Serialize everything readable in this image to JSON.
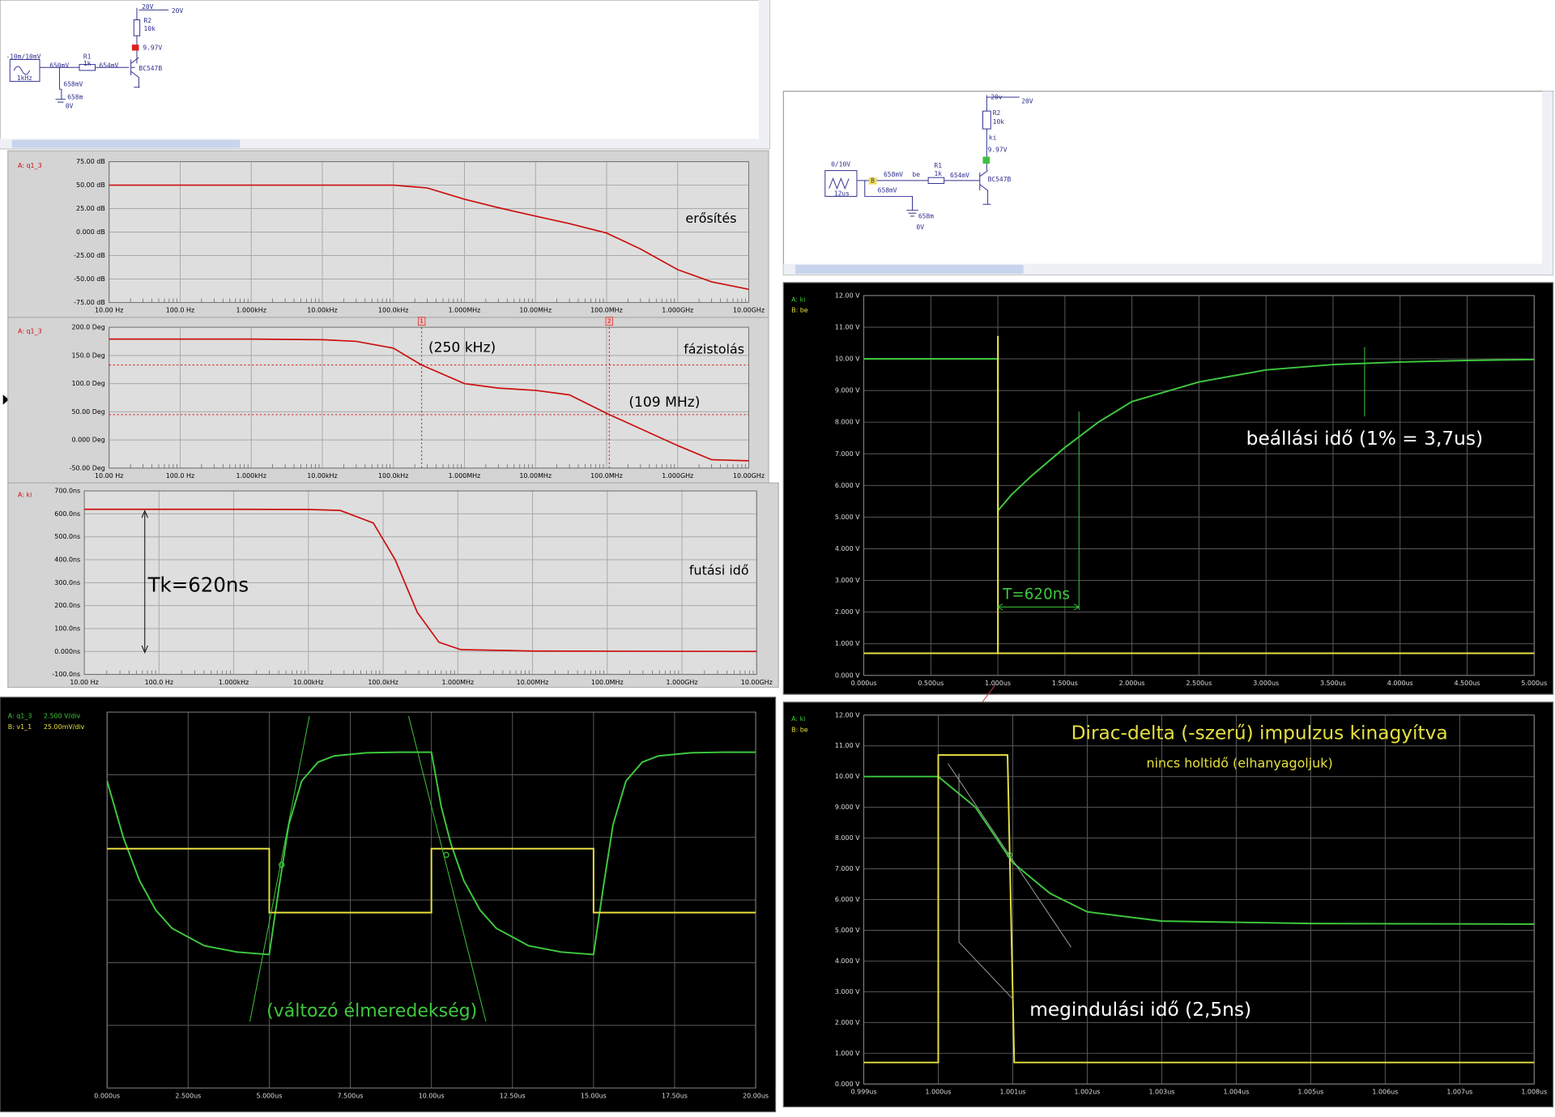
{
  "schematics": [
    {
      "labels": [
        "20V",
        "20V",
        "R2",
        "10k",
        "9.97V",
        "BC547B",
        "-10m/10mV",
        "1kHz",
        "R1",
        "1k",
        "650mV",
        "654mV",
        "658mV",
        "658m",
        "0V"
      ]
    },
    {
      "labels": [
        "20v",
        "20V",
        "R2",
        "10k",
        "ki",
        "9.97V",
        "BC547B",
        "0/10V",
        "12us",
        "B",
        "658mV",
        "be",
        "R1",
        "1k",
        "654mV",
        "658mV",
        "658m",
        "0V"
      ]
    }
  ],
  "chart_data": [
    {
      "type": "line",
      "xscale": "log",
      "grid": true,
      "xlim": [
        10,
        10000000000
      ],
      "xticks": [
        {
          "value": 10,
          "label": "10.00 Hz"
        },
        {
          "value": 100,
          "label": "100.0 Hz"
        },
        {
          "value": 1000,
          "label": "1.000kHz"
        },
        {
          "value": 10000,
          "label": "10.00kHz"
        },
        {
          "value": 100000,
          "label": "100.0kHz"
        },
        {
          "value": 1000000,
          "label": "1.000MHz"
        },
        {
          "value": 10000000,
          "label": "10.00MHz"
        },
        {
          "value": 100000000,
          "label": "100.0MHz"
        },
        {
          "value": 1000000000,
          "label": "1.000GHz"
        },
        {
          "value": 10000000000,
          "label": "10.00GHz"
        }
      ],
      "ylim": [
        -75,
        75
      ],
      "yticks": [
        {
          "value": 75,
          "label": "75.00 dB"
        },
        {
          "value": 50,
          "label": "50.00 dB"
        },
        {
          "value": 25,
          "label": "25.00 dB"
        },
        {
          "value": 0,
          "label": "0.000 dB"
        },
        {
          "value": -25,
          "label": "-25.00 dB"
        },
        {
          "value": -50,
          "label": "-50.00 dB"
        },
        {
          "value": -75,
          "label": "-75.00 dB"
        }
      ],
      "x": [
        10,
        100,
        1000,
        10000,
        100000,
        300000,
        1000000,
        3000000,
        10000000,
        30000000,
        100000000,
        300000000,
        1000000000,
        3000000000,
        10000000000
      ],
      "series": [
        {
          "name": "A: q1_3",
          "color": "#cc1010",
          "values": [
            50,
            50,
            50,
            50,
            50,
            47,
            35,
            26,
            17,
            9,
            -1,
            -18,
            -40,
            -53,
            -61
          ]
        }
      ],
      "annotations": [
        "erősítés"
      ]
    },
    {
      "type": "line",
      "xscale": "log",
      "grid": true,
      "xlim": [
        10,
        10000000000
      ],
      "xticks": [
        {
          "value": 10,
          "label": "10.00 Hz"
        },
        {
          "value": 100,
          "label": "100.0 Hz"
        },
        {
          "value": 1000,
          "label": "1.000kHz"
        },
        {
          "value": 10000,
          "label": "10.00kHz"
        },
        {
          "value": 100000,
          "label": "100.0kHz"
        },
        {
          "value": 1000000,
          "label": "1.000MHz"
        },
        {
          "value": 10000000,
          "label": "10.00MHz"
        },
        {
          "value": 100000000,
          "label": "100.0MHz"
        },
        {
          "value": 1000000000,
          "label": "1.000GHz"
        },
        {
          "value": 10000000000,
          "label": "10.00GHz"
        }
      ],
      "ylim": [
        -50,
        200
      ],
      "yticks": [
        {
          "value": 200,
          "label": "200.0 Deg"
        },
        {
          "value": 150,
          "label": "150.0 Deg"
        },
        {
          "value": 100,
          "label": "100.0 Deg"
        },
        {
          "value": 50,
          "label": "50.00 Deg"
        },
        {
          "value": 0,
          "label": "0.000 Deg"
        },
        {
          "value": -50,
          "label": "-50.00 Deg"
        }
      ],
      "x": [
        10,
        100,
        1000,
        10000,
        30000,
        100000,
        250000,
        1000000,
        3000000,
        10000000,
        30000000,
        109000000,
        300000000,
        1000000000,
        3000000000,
        10000000000
      ],
      "series": [
        {
          "name": "A: q1_3",
          "color": "#cc1010",
          "values": [
            179,
            179,
            179,
            178,
            175,
            163,
            133,
            100,
            92,
            88,
            80,
            45,
            20,
            -10,
            -35,
            -37
          ]
        }
      ],
      "cursors": [
        {
          "label": "1",
          "x": 250000,
          "y": 133
        },
        {
          "label": "2",
          "x": 109000000,
          "y": 45
        }
      ],
      "annotations": [
        "fázistolás",
        "(250 kHz)",
        "(109 MHz)"
      ]
    },
    {
      "type": "line",
      "xscale": "log",
      "grid": true,
      "xlim": [
        10,
        10000000000
      ],
      "xticks": [
        {
          "value": 10,
          "label": "10.00 Hz"
        },
        {
          "value": 100,
          "label": "100.0 Hz"
        },
        {
          "value": 1000,
          "label": "1.000kHz"
        },
        {
          "value": 10000,
          "label": "10.00kHz"
        },
        {
          "value": 100000,
          "label": "100.0kHz"
        },
        {
          "value": 1000000,
          "label": "1.000MHz"
        },
        {
          "value": 10000000,
          "label": "10.00MHz"
        },
        {
          "value": 100000000,
          "label": "100.0MHz"
        },
        {
          "value": 1000000000,
          "label": "1.000GHz"
        },
        {
          "value": 10000000000,
          "label": "10.00GHz"
        }
      ],
      "ylim": [
        -100,
        700
      ],
      "yticks": [
        {
          "value": 700,
          "label": "700.0ns"
        },
        {
          "value": 600,
          "label": "600.0ns"
        },
        {
          "value": 500,
          "label": "500.0ns"
        },
        {
          "value": 400,
          "label": "400.0ns"
        },
        {
          "value": 300,
          "label": "300.0ns"
        },
        {
          "value": 200,
          "label": "200.0ns"
        },
        {
          "value": 100,
          "label": "100.0ns"
        },
        {
          "value": 0,
          "label": "0.000ns"
        },
        {
          "value": -100,
          "label": "-100.0ns"
        }
      ],
      "x": [
        10,
        1000,
        10000,
        26600,
        74000,
        145000,
        287000,
        560000,
        1100000,
        10000000,
        10000000000
      ],
      "series": [
        {
          "name": "A: ki",
          "color": "#cc1010",
          "values": [
            620,
            620,
            619,
            615,
            560,
            400,
            170,
            40,
            8,
            2,
            0
          ]
        }
      ],
      "annotations": [
        "futási idő",
        "Tk=620ns"
      ]
    },
    {
      "type": "line",
      "grid": true,
      "xlim": [
        0,
        20
      ],
      "xticks": [
        {
          "value": 0,
          "label": "0.000us"
        },
        {
          "value": 2.5,
          "label": "2.500us"
        },
        {
          "value": 5,
          "label": "5.000us"
        },
        {
          "value": 7.5,
          "label": "7.500us"
        },
        {
          "value": 10,
          "label": "10.00us"
        },
        {
          "value": 12.5,
          "label": "12.50us"
        },
        {
          "value": 15,
          "label": "15.00us"
        },
        {
          "value": 17.5,
          "label": "17.50us"
        },
        {
          "value": 20,
          "label": "20.00us"
        }
      ],
      "ylim": [
        -3,
        3
      ],
      "series": [
        {
          "name": "A: q1_3",
          "scale": "2.500 V/div",
          "color": "#3ec83e",
          "x": [
            0,
            0.5,
            1,
            1.5,
            2,
            3,
            4,
            5,
            5.3,
            5.6,
            6,
            6.5,
            7,
            8,
            9,
            10,
            10.3,
            10.6,
            11,
            11.5,
            12,
            13,
            14,
            15,
            15.3,
            15.6,
            16,
            16.5,
            17,
            18,
            19,
            20
          ],
          "values": [
            1.9,
            1.0,
            0.31,
            -0.16,
            -0.45,
            -0.73,
            -0.83,
            -0.87,
            0.2,
            1.2,
            1.9,
            2.2,
            2.3,
            2.35,
            2.36,
            2.36,
            1.5,
            0.9,
            0.31,
            -0.16,
            -0.45,
            -0.73,
            -0.83,
            -0.87,
            0.2,
            1.2,
            1.9,
            2.2,
            2.3,
            2.35,
            2.36,
            2.36
          ]
        },
        {
          "name": "B: v1_1",
          "scale": "25.00mV/div",
          "color": "#e6e040",
          "x": [
            0,
            5,
            5,
            10,
            10,
            15,
            15,
            20
          ],
          "values": [
            0.82,
            0.82,
            -0.2,
            -0.2,
            0.82,
            0.82,
            -0.2,
            -0.2
          ]
        }
      ],
      "annotations": [
        "(változó élmeredekség)"
      ]
    },
    {
      "type": "line",
      "grid": true,
      "xlim": [
        0,
        5
      ],
      "xticks": [
        {
          "value": 0,
          "label": "0.000us"
        },
        {
          "value": 0.5,
          "label": "0.500us"
        },
        {
          "value": 1,
          "label": "1.000us"
        },
        {
          "value": 1.5,
          "label": "1.500us"
        },
        {
          "value": 2,
          "label": "2.000us"
        },
        {
          "value": 2.5,
          "label": "2.500us"
        },
        {
          "value": 3,
          "label": "3.000us"
        },
        {
          "value": 3.5,
          "label": "3.500us"
        },
        {
          "value": 4,
          "label": "4.000us"
        },
        {
          "value": 4.5,
          "label": "4.500us"
        },
        {
          "value": 5,
          "label": "5.000us"
        }
      ],
      "ylim": [
        0,
        12
      ],
      "yticks": [
        {
          "value": 12,
          "label": "12.00 V"
        },
        {
          "value": 11,
          "label": "11.00 V"
        },
        {
          "value": 10,
          "label": "10.00 V"
        },
        {
          "value": 9,
          "label": "9.000 V"
        },
        {
          "value": 8,
          "label": "8.000 V"
        },
        {
          "value": 7,
          "label": "7.000 V"
        },
        {
          "value": 6,
          "label": "6.000 V"
        },
        {
          "value": 5,
          "label": "5.000 V"
        },
        {
          "value": 4,
          "label": "4.000 V"
        },
        {
          "value": 3,
          "label": "3.000 V"
        },
        {
          "value": 2,
          "label": "2.000 V"
        },
        {
          "value": 1,
          "label": "1.000 V"
        },
        {
          "value": 0,
          "label": "0.000 V"
        }
      ],
      "series": [
        {
          "name": "A: ki",
          "color": "#3ec83e",
          "x": [
            0,
            0.999,
            1.0,
            1.1,
            1.25,
            1.5,
            1.75,
            2,
            2.5,
            3,
            3.5,
            4,
            4.5,
            5
          ],
          "values": [
            10,
            10,
            5.2,
            5.7,
            6.3,
            7.2,
            8.0,
            8.65,
            9.27,
            9.65,
            9.82,
            9.9,
            9.95,
            9.98
          ]
        },
        {
          "name": "B: be",
          "color": "#e6e040",
          "x": [
            0,
            1,
            1,
            1.001,
            1.001,
            5
          ],
          "values": [
            0.7,
            0.7,
            10.7,
            10.7,
            0.7,
            0.7
          ]
        }
      ],
      "annotations": [
        "beállási idő (1% = 3,7us)",
        "T=620ns"
      ]
    },
    {
      "type": "line",
      "grid": true,
      "xlim": [
        0.999,
        1.008
      ],
      "xticks": [
        {
          "value": 0.999,
          "label": "0.999us"
        },
        {
          "value": 1.0,
          "label": "1.000us"
        },
        {
          "value": 1.001,
          "label": "1.001us"
        },
        {
          "value": 1.002,
          "label": "1.002us"
        },
        {
          "value": 1.003,
          "label": "1.003us"
        },
        {
          "value": 1.004,
          "label": "1.004us"
        },
        {
          "value": 1.005,
          "label": "1.005us"
        },
        {
          "value": 1.006,
          "label": "1.006us"
        },
        {
          "value": 1.007,
          "label": "1.007us"
        },
        {
          "value": 1.008,
          "label": "1.008us"
        }
      ],
      "ylim": [
        0,
        12
      ],
      "yticks": [
        {
          "value": 12,
          "label": "12.00 V"
        },
        {
          "value": 11,
          "label": "11.00 V"
        },
        {
          "value": 10,
          "label": "10.00 V"
        },
        {
          "value": 9,
          "label": "9.000 V"
        },
        {
          "value": 8,
          "label": "8.000 V"
        },
        {
          "value": 7,
          "label": "7.000 V"
        },
        {
          "value": 6,
          "label": "6.000 V"
        },
        {
          "value": 5,
          "label": "5.000 V"
        },
        {
          "value": 4,
          "label": "4.000 V"
        },
        {
          "value": 3,
          "label": "3.000 V"
        },
        {
          "value": 2,
          "label": "2.000 V"
        },
        {
          "value": 1,
          "label": "1.000 V"
        },
        {
          "value": 0,
          "label": "0.000 V"
        }
      ],
      "series": [
        {
          "name": "A: ki",
          "color": "#3ec83e",
          "x": [
            0.999,
            1.0,
            1.0002,
            1.0005,
            1.001,
            1.0015,
            1.002,
            1.003,
            1.005,
            1.008
          ],
          "values": [
            10,
            10,
            9.6,
            9.0,
            7.2,
            6.2,
            5.6,
            5.3,
            5.22,
            5.2
          ]
        },
        {
          "name": "B: be",
          "color": "#e6e040",
          "x": [
            0.999,
            1.0,
            1.0,
            1.00093,
            1.00102,
            1.008
          ],
          "values": [
            0.7,
            0.7,
            10.7,
            10.7,
            0.7,
            0.7
          ]
        }
      ],
      "annotations": [
        "Dirac-delta (-szerű) impulzus kinagyítva",
        "nincs holtidő (elhanyagoljuk)",
        "megindulási idő (2,5ns)"
      ]
    }
  ]
}
